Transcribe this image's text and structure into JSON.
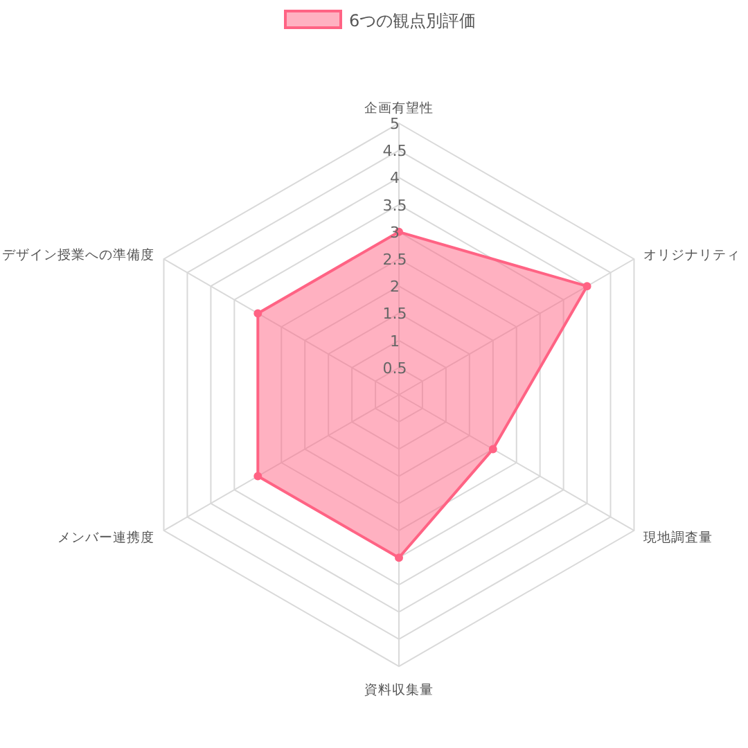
{
  "chart_data": {
    "type": "radar",
    "categories": [
      "企画有望性",
      "オリジナリティ",
      "現地調査量",
      "資料収集量",
      "メンバー連携度",
      "デザイン授業への準備度"
    ],
    "series": [
      {
        "name": "6つの観点別評価",
        "color": "#ff6384",
        "values": [
          3,
          4,
          2,
          3,
          3,
          3
        ]
      }
    ],
    "ylim": [
      0,
      5
    ],
    "yticks": [
      0.5,
      1,
      1.5,
      2,
      2.5,
      3,
      3.5,
      4,
      4.5,
      5
    ],
    "grid": true,
    "legend": "top",
    "marker": "circle"
  }
}
